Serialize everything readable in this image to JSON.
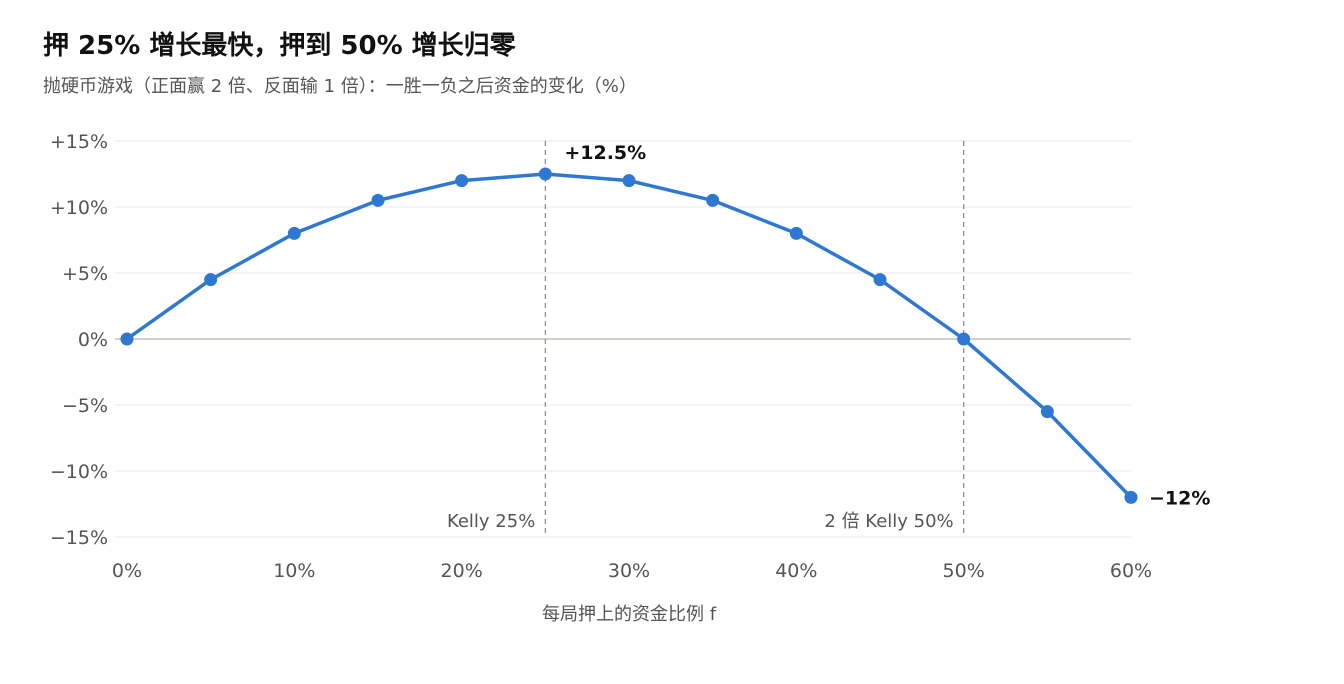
{
  "title": "押 25% 增长最快，押到 50% 增长归零",
  "subtitle": "抛硬币游戏（正面赢 2 倍、反面输 1 倍）：一胜一负之后资金的变化（%）",
  "chart_data": {
    "type": "line",
    "xlabel": "每局押上的资金比例 f",
    "ylabel": "",
    "x": [
      0,
      5,
      10,
      15,
      20,
      25,
      30,
      35,
      40,
      45,
      50,
      55,
      60
    ],
    "x_ticks": [
      0,
      10,
      20,
      30,
      40,
      50,
      60
    ],
    "x_tick_labels": [
      "0%",
      "10%",
      "20%",
      "30%",
      "40%",
      "50%",
      "60%"
    ],
    "xlim": [
      0,
      60
    ],
    "ylim": [
      -15,
      15
    ],
    "y_ticks": [
      15,
      10,
      5,
      0,
      -5,
      -10,
      -15
    ],
    "y_tick_labels": [
      "+15%",
      "+10%",
      "+5%",
      "0%",
      "−5%",
      "−10%",
      "−15%"
    ],
    "grid": true,
    "series": [
      {
        "color": "#2f78d1",
        "values": [
          0,
          4.5,
          8,
          10.5,
          12,
          12.5,
          12,
          10.5,
          8,
          4.5,
          0,
          -5.5,
          -12
        ]
      }
    ],
    "reference_lines": [
      {
        "x": 25,
        "label": "Kelly 25%"
      },
      {
        "x": 50,
        "label": "2 倍 Kelly 50%"
      }
    ],
    "annotations": [
      {
        "x": 25,
        "y": 12.5,
        "text": "+12.5%"
      },
      {
        "x": 60,
        "y": -12,
        "text": "−12%"
      }
    ]
  }
}
